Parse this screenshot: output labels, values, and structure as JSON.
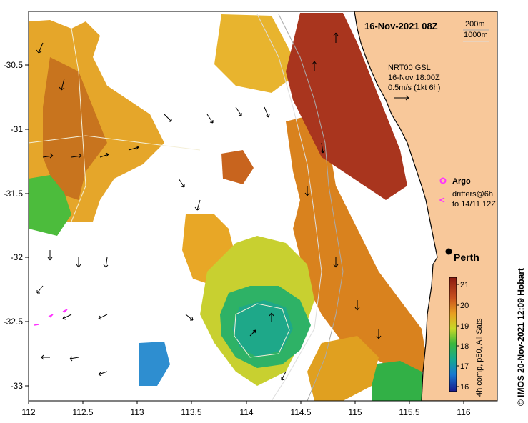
{
  "title": "16-Nov-2021 08Z",
  "depth_legend": {
    "line1": "200m",
    "line2": "1000m"
  },
  "current_note": {
    "line1": "NRT00 GSL",
    "line2": "16-Nov 18:00Z",
    "line3": "0.5m/s (1kt 6h)"
  },
  "argo_label": "Argo",
  "drifters_label": {
    "line1": "drifters@6h",
    "line2": "to 14/11 12Z"
  },
  "city_label": "Perth",
  "colorbar_caption": "4h comp, p50, All Sats",
  "colorbar_ticks": [
    "21",
    "20",
    "19",
    "18",
    "17",
    "16"
  ],
  "credit": "© IMOS 20-Nov-2021 12:09 Hobart",
  "axes": {
    "x_ticks": [
      "112",
      "112.5",
      "113",
      "113.5",
      "114",
      "114.5",
      "115",
      "115.5",
      "116"
    ],
    "y_ticks": [
      "-30.5",
      "-31",
      "-31.5",
      "-32",
      "-32.5",
      "-33"
    ]
  },
  "colors": {
    "land": "#f8c89a",
    "sst_warm": "#a9351e",
    "sst_mid": "#e0a21e",
    "sst_cool": "#22a861",
    "argo": "#ff33ff"
  }
}
